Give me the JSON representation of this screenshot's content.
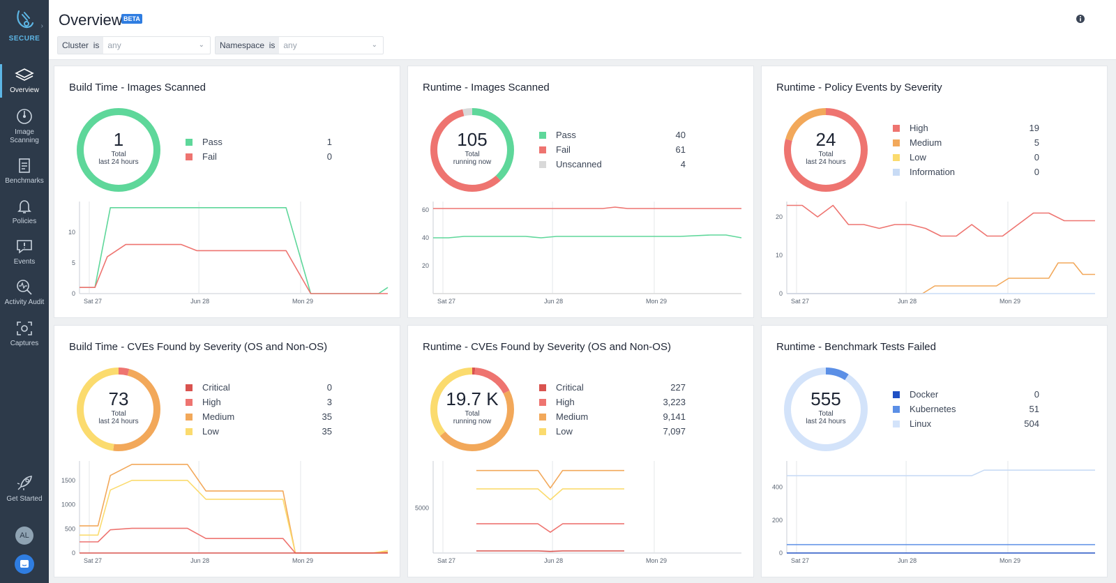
{
  "sidebar": {
    "brand": "SECURE",
    "items": [
      {
        "label": "Overview"
      },
      {
        "label": "Image Scanning"
      },
      {
        "label": "Benchmarks"
      },
      {
        "label": "Policies"
      },
      {
        "label": "Events"
      },
      {
        "label": "Activity Audit"
      },
      {
        "label": "Captures"
      },
      {
        "label": "Get Started"
      }
    ],
    "avatar": "AL"
  },
  "header": {
    "title": "Overview",
    "badge": "BETA",
    "filters": [
      {
        "label": "Cluster",
        "op": "is",
        "value": "any"
      },
      {
        "label": "Namespace",
        "op": "is",
        "value": "any"
      }
    ]
  },
  "colors": {
    "pass": "#5ed79a",
    "fail": "#ee7470",
    "unscanned": "#d9d9d9",
    "critical": "#d9534f",
    "high": "#ee7470",
    "medium": "#f2a85a",
    "low": "#fbdb6e",
    "information": "#c8dbf5",
    "docker": "#2050c4",
    "kubernetes": "#5b8fe6",
    "linux": "#d3e3fa"
  },
  "cards": [
    {
      "title": "Build Time - Images Scanned",
      "value": "1",
      "sub1": "Total",
      "sub2": "last 24 hours",
      "legend": [
        {
          "label": "Pass",
          "value": "1",
          "color": "#5ed79a"
        },
        {
          "label": "Fail",
          "value": "0",
          "color": "#ee7470"
        }
      ]
    },
    {
      "title": "Runtime - Images Scanned",
      "value": "105",
      "sub1": "Total",
      "sub2": "running now",
      "legend": [
        {
          "label": "Pass",
          "value": "40",
          "color": "#5ed79a"
        },
        {
          "label": "Fail",
          "value": "61",
          "color": "#ee7470"
        },
        {
          "label": "Unscanned",
          "value": "4",
          "color": "#d9d9d9"
        }
      ]
    },
    {
      "title": "Runtime - Policy Events by Severity",
      "value": "24",
      "sub1": "Total",
      "sub2": "last 24 hours",
      "legend": [
        {
          "label": "High",
          "value": "19",
          "color": "#ee7470"
        },
        {
          "label": "Medium",
          "value": "5",
          "color": "#f2a85a"
        },
        {
          "label": "Low",
          "value": "0",
          "color": "#fbdb6e"
        },
        {
          "label": "Information",
          "value": "0",
          "color": "#c8dbf5"
        }
      ]
    },
    {
      "title": "Build Time - CVEs Found by Severity (OS and Non-OS)",
      "value": "73",
      "sub1": "Total",
      "sub2": "last 24 hours",
      "legend": [
        {
          "label": "Critical",
          "value": "0",
          "color": "#d9534f"
        },
        {
          "label": "High",
          "value": "3",
          "color": "#ee7470"
        },
        {
          "label": "Medium",
          "value": "35",
          "color": "#f2a85a"
        },
        {
          "label": "Low",
          "value": "35",
          "color": "#fbdb6e"
        }
      ]
    },
    {
      "title": "Runtime - CVEs Found by Severity (OS and Non-OS)",
      "value": "19.7 K",
      "sub1": "Total",
      "sub2": "running now",
      "legend": [
        {
          "label": "Critical",
          "value": "227",
          "color": "#d9534f"
        },
        {
          "label": "High",
          "value": "3,223",
          "color": "#ee7470"
        },
        {
          "label": "Medium",
          "value": "9,141",
          "color": "#f2a85a"
        },
        {
          "label": "Low",
          "value": "7,097",
          "color": "#fbdb6e"
        }
      ]
    },
    {
      "title": "Runtime - Benchmark Tests Failed",
      "value": "555",
      "sub1": "Total",
      "sub2": "last 24 hours",
      "legend": [
        {
          "label": "Docker",
          "value": "0",
          "color": "#2050c4"
        },
        {
          "label": "Kubernetes",
          "value": "51",
          "color": "#5b8fe6"
        },
        {
          "label": "Linux",
          "value": "504",
          "color": "#d3e3fa"
        }
      ]
    }
  ],
  "chart_data": [
    {
      "type": "line",
      "title": "Build Time - Images Scanned",
      "xticks": [
        "Sat 27",
        "Jun 28",
        "Mon 29"
      ],
      "yticks": [
        0,
        5,
        10
      ],
      "ylim": [
        0,
        15
      ],
      "xlim": [
        0,
        100
      ],
      "series": [
        {
          "name": "Pass",
          "color": "#5ed79a",
          "x": [
            0,
            5,
            10,
            67,
            75,
            97,
            100
          ],
          "y": [
            1,
            1,
            14,
            14,
            0,
            0,
            1
          ]
        },
        {
          "name": "Fail",
          "color": "#ee7470",
          "x": [
            0,
            5,
            9,
            15,
            33,
            38,
            67,
            75,
            100
          ],
          "y": [
            1,
            1,
            6,
            8,
            8,
            7,
            7,
            0,
            0
          ]
        }
      ]
    },
    {
      "type": "line",
      "title": "Runtime - Images Scanned",
      "xticks": [
        "Sat 27",
        "Jun 28",
        "Mon 29"
      ],
      "yticks": [
        20,
        40,
        60
      ],
      "ylim": [
        0,
        66
      ],
      "xlim": [
        0,
        100
      ],
      "series": [
        {
          "name": "Fail",
          "color": "#ee7470",
          "x": [
            0,
            30,
            55,
            59,
            63,
            100
          ],
          "y": [
            61,
            61,
            61,
            62,
            61,
            61
          ]
        },
        {
          "name": "Pass",
          "color": "#5ed79a",
          "x": [
            0,
            5,
            10,
            30,
            35,
            40,
            80,
            90,
            95,
            100
          ],
          "y": [
            40,
            40,
            41,
            41,
            40,
            41,
            41,
            42,
            42,
            40
          ]
        },
        {
          "name": "Unscanned",
          "color": "#d9d9d9",
          "x": [
            0,
            100
          ],
          "y": [
            0,
            0
          ]
        }
      ]
    },
    {
      "type": "line",
      "title": "Runtime - Policy Events by Severity",
      "xticks": [
        "Sat 27",
        "Jun 28",
        "Mon 29"
      ],
      "yticks": [
        0,
        10,
        20
      ],
      "ylim": [
        0,
        24
      ],
      "xlim": [
        0,
        100
      ],
      "series": [
        {
          "name": "High",
          "color": "#ee7470",
          "x": [
            0,
            5,
            10,
            15,
            20,
            25,
            30,
            35,
            40,
            45,
            50,
            55,
            60,
            65,
            70,
            75,
            80,
            85,
            90,
            95,
            100
          ],
          "y": [
            23,
            23,
            20,
            23,
            18,
            18,
            17,
            18,
            18,
            17,
            15,
            15,
            18,
            15,
            15,
            18,
            21,
            21,
            19,
            19,
            19
          ]
        },
        {
          "name": "Medium",
          "color": "#f2a85a",
          "x": [
            0,
            44,
            48,
            68,
            72,
            85,
            88,
            93,
            96,
            100
          ],
          "y": [
            0,
            0,
            2,
            2,
            4,
            4,
            8,
            8,
            5,
            5
          ]
        },
        {
          "name": "Information",
          "color": "#c8dbf5",
          "x": [
            0,
            100
          ],
          "y": [
            0,
            0
          ]
        }
      ]
    },
    {
      "type": "line",
      "title": "Build Time - CVEs Found by Severity (OS and Non-OS)",
      "xticks": [
        "Sat 27",
        "Jun 28",
        "Mon 29"
      ],
      "yticks": [
        0,
        500,
        1000,
        1500
      ],
      "ylim": [
        0,
        1900
      ],
      "xlim": [
        0,
        100
      ],
      "series": [
        {
          "name": "Medium",
          "color": "#f2a85a",
          "x": [
            0,
            6,
            10,
            17,
            35,
            41,
            66,
            70,
            95,
            100
          ],
          "y": [
            560,
            560,
            1600,
            1830,
            1830,
            1280,
            1280,
            0,
            0,
            20
          ]
        },
        {
          "name": "Low",
          "color": "#fbdb6e",
          "x": [
            0,
            6,
            10,
            17,
            35,
            41,
            66,
            70,
            95,
            100
          ],
          "y": [
            370,
            370,
            1300,
            1500,
            1500,
            1110,
            1110,
            0,
            0,
            50
          ]
        },
        {
          "name": "High",
          "color": "#ee7470",
          "x": [
            0,
            6,
            10,
            17,
            35,
            41,
            66,
            70,
            95,
            100
          ],
          "y": [
            230,
            230,
            480,
            510,
            510,
            300,
            300,
            0,
            0,
            0
          ]
        },
        {
          "name": "Critical",
          "color": "#d9534f",
          "x": [
            0,
            100
          ],
          "y": [
            0,
            0
          ]
        }
      ]
    },
    {
      "type": "line",
      "title": "Runtime - CVEs Found by Severity (OS and Non-OS)",
      "xticks": [
        "Sat 27",
        "Jun 28",
        "Mon 29"
      ],
      "yticks": [
        5000
      ],
      "ylim": [
        0,
        10200
      ],
      "xlim": [
        0,
        100
      ],
      "series": [
        {
          "name": "Medium",
          "color": "#f2a85a",
          "x": [
            14,
            34,
            38,
            42,
            62
          ],
          "y": [
            9140,
            9140,
            7200,
            9140,
            9140
          ]
        },
        {
          "name": "Low",
          "color": "#fbdb6e",
          "x": [
            14,
            34,
            38,
            42,
            62
          ],
          "y": [
            7100,
            7100,
            5900,
            7100,
            7100
          ]
        },
        {
          "name": "High",
          "color": "#ee7470",
          "x": [
            14,
            34,
            38,
            42,
            62
          ],
          "y": [
            3240,
            3240,
            2300,
            3240,
            3240
          ]
        },
        {
          "name": "Critical",
          "color": "#d9534f",
          "x": [
            14,
            34,
            38,
            42,
            62
          ],
          "y": [
            230,
            230,
            180,
            230,
            230
          ]
        }
      ]
    },
    {
      "type": "line",
      "title": "Runtime - Benchmark Tests Failed",
      "xticks": [
        "Sat 27",
        "Jun 28",
        "Mon 29"
      ],
      "yticks": [
        0,
        200,
        400
      ],
      "ylim": [
        0,
        560
      ],
      "xlim": [
        0,
        100
      ],
      "series": [
        {
          "name": "Linux",
          "color": "#c8dbf5",
          "x": [
            0,
            60,
            64,
            100
          ],
          "y": [
            470,
            470,
            504,
            504
          ]
        },
        {
          "name": "Kubernetes",
          "color": "#5b8fe6",
          "x": [
            0,
            100
          ],
          "y": [
            51,
            51
          ]
        },
        {
          "name": "Docker",
          "color": "#2050c4",
          "x": [
            0,
            100
          ],
          "y": [
            0,
            0
          ]
        }
      ]
    }
  ]
}
